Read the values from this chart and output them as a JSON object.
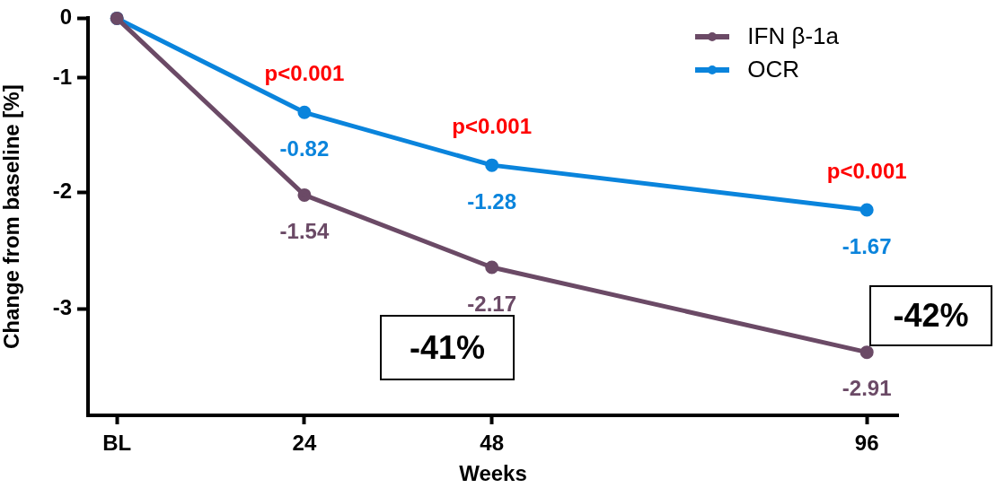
{
  "chart_data": {
    "type": "line",
    "xlabel": "Weeks",
    "ylabel": "Change from baseline [%]",
    "x": [
      0,
      24,
      48,
      96
    ],
    "xlim": [
      -3.7,
      100
    ],
    "xticks": [
      {
        "value": 0,
        "label": "BL"
      },
      24,
      48,
      96
    ],
    "ylim": [
      -3.46,
      0
    ],
    "yticks": [
      0,
      {
        "value": -0.52,
        "label": "-1"
      },
      {
        "value": -1.52,
        "label": "-2"
      },
      {
        "value": -2.53,
        "label": "-3"
      }
    ],
    "series": [
      {
        "name": "IFN β-1a",
        "color": "#6b4a66",
        "values": [
          0,
          -1.54,
          -2.17,
          -2.91
        ],
        "value_labels": [
          null,
          "-1.54",
          "-2.17",
          "-2.91"
        ]
      },
      {
        "name": "OCR",
        "color": "#0a84dc",
        "values": [
          0,
          -0.82,
          -1.28,
          -1.67
        ],
        "value_labels": [
          null,
          "-0.82",
          "-1.28",
          "-1.67"
        ]
      }
    ],
    "annotations": [
      {
        "text": "p<0.001",
        "x": 24,
        "y": -0.82
      },
      {
        "text": "p<0.001",
        "x": 48,
        "y": -1.28
      },
      {
        "text": "p<0.001",
        "x": 96,
        "y": -1.67
      },
      "-41%",
      "-42%"
    ],
    "legend": "top right",
    "marker": "circle",
    "grid": false
  }
}
